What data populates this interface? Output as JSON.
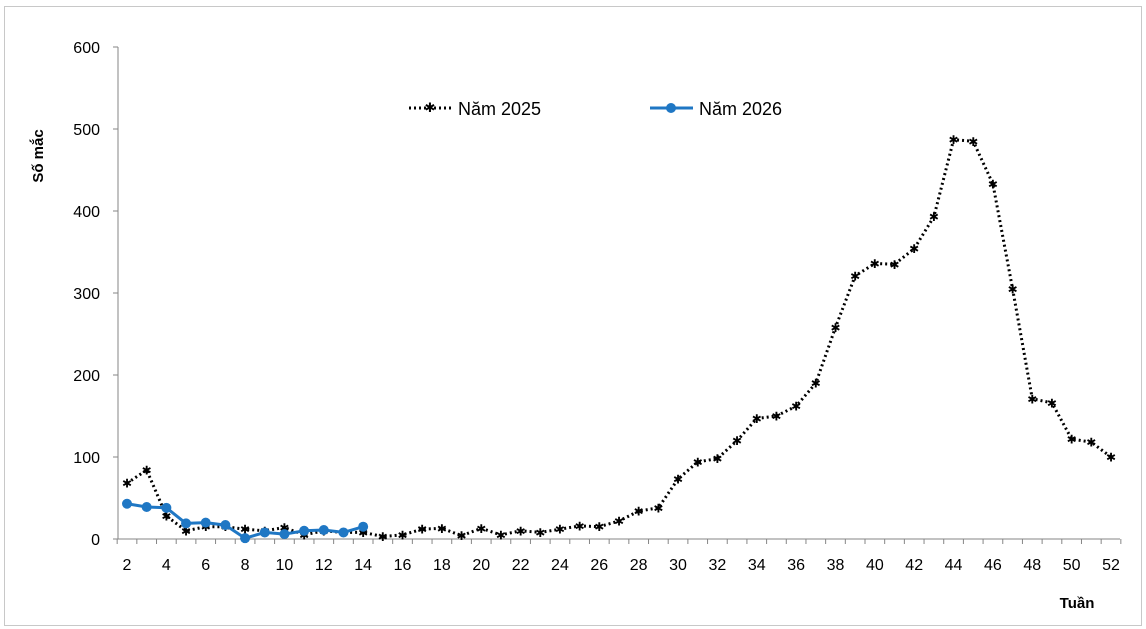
{
  "chart_data": {
    "type": "line",
    "xlabel": "Tuần",
    "ylabel": "Số mắc",
    "ylim": [
      0,
      600
    ],
    "yticks": [
      0,
      100,
      200,
      300,
      400,
      500,
      600
    ],
    "xlim": [
      2,
      52
    ],
    "xticks": [
      2,
      4,
      6,
      8,
      10,
      12,
      14,
      16,
      18,
      20,
      22,
      24,
      26,
      28,
      30,
      32,
      34,
      36,
      38,
      40,
      42,
      44,
      46,
      48,
      50,
      52
    ],
    "grid": false,
    "legend_position": "top",
    "series": [
      {
        "name": "Năm 2025",
        "color": "#000000",
        "style": "dotted",
        "marker": "star",
        "x": [
          2,
          3,
          4,
          5,
          6,
          7,
          8,
          9,
          10,
          11,
          12,
          13,
          14,
          15,
          16,
          17,
          18,
          19,
          20,
          21,
          22,
          23,
          24,
          25,
          26,
          27,
          28,
          29,
          30,
          31,
          32,
          33,
          34,
          35,
          36,
          37,
          38,
          39,
          40,
          41,
          42,
          43,
          44,
          45,
          46,
          47,
          48,
          49,
          50,
          51,
          52
        ],
        "values": [
          68,
          84,
          28,
          10,
          15,
          15,
          12,
          10,
          14,
          5,
          10,
          8,
          8,
          3,
          5,
          12,
          13,
          4,
          13,
          5,
          10,
          8,
          12,
          16,
          15,
          22,
          34,
          38,
          73,
          94,
          98,
          120,
          147,
          150,
          162,
          190,
          258,
          321,
          336,
          335,
          354,
          393,
          487,
          485,
          433,
          305,
          171,
          166,
          122,
          118,
          100
        ]
      },
      {
        "name": "Năm 2026",
        "color": "#1f77c4",
        "style": "solid",
        "marker": "circle",
        "x": [
          2,
          3,
          4,
          5,
          6,
          7,
          8,
          9,
          10,
          11,
          12,
          13,
          14
        ],
        "values": [
          43,
          39,
          38,
          19,
          20,
          17,
          1,
          8,
          6,
          10,
          11,
          8,
          15
        ]
      }
    ]
  }
}
